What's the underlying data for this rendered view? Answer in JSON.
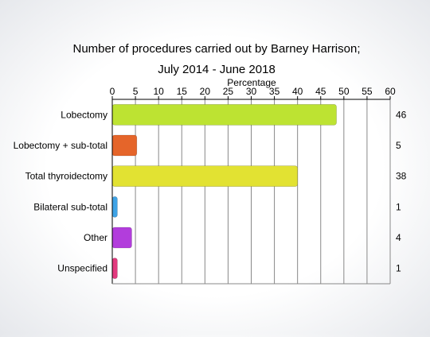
{
  "chart_data": {
    "type": "bar",
    "orientation": "horizontal",
    "title": "Number of procedures carried out by Barney Harrison;",
    "subtitle": "July 2014 - June 2018",
    "xlabel": "Percentage",
    "ylabel": "",
    "xlim": [
      0,
      60
    ],
    "x_ticks": [
      "0",
      "5",
      "10",
      "15",
      "20",
      "25",
      "30",
      "35",
      "40",
      "45",
      "50",
      "55",
      "60"
    ],
    "x_axis_position": "top",
    "grid": true,
    "legend": "none",
    "categories": [
      "Lobectomy",
      "Lobectomy + sub-total",
      "Total thyroidectomy",
      "Bilateral sub-total",
      "Other",
      "Unspecified"
    ],
    "percentages": [
      48.4,
      5.3,
      40.0,
      1.1,
      4.2,
      1.1
    ],
    "counts": [
      "46",
      "5",
      "38",
      "1",
      "4",
      "1"
    ],
    "colors": [
      "#bde332",
      "#e5652a",
      "#e2e232",
      "#3fa3e6",
      "#b23ddc",
      "#e33a7e"
    ]
  }
}
